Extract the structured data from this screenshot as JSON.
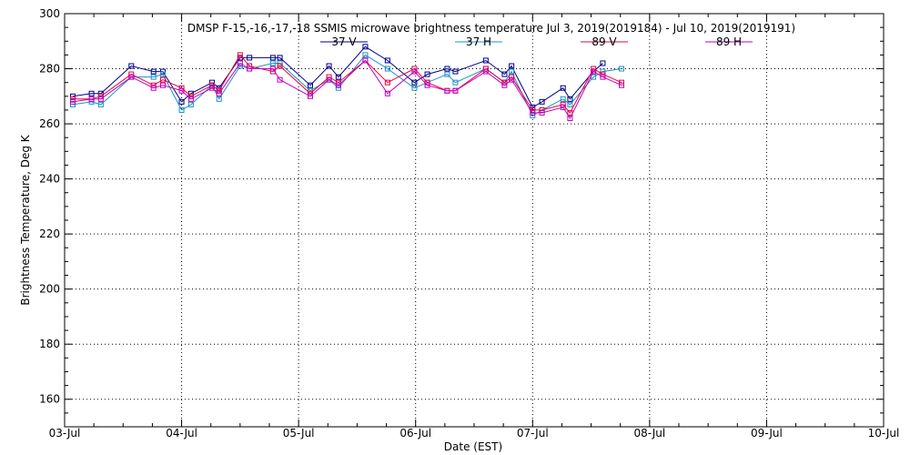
{
  "chart_data": {
    "type": "line",
    "title": "DMSP F-15,-16,-17,-18 SSMIS microwave brightness temperature Jul  3, 2019(2019184) - Jul 10, 2019(2019191)",
    "xlabel": "Date (EST)",
    "ylabel": "Brightness Temperature, Deg K",
    "xlim": [
      0,
      7
    ],
    "ylim": [
      150,
      300
    ],
    "grid": true,
    "legend_position": "top-center",
    "x_tick_values": [
      0,
      1,
      2,
      3,
      4,
      5,
      6,
      7
    ],
    "x_tick_labels": [
      "03-Jul",
      "04-Jul",
      "05-Jul",
      "06-Jul",
      "07-Jul",
      "08-Jul",
      "09-Jul",
      "10-Jul"
    ],
    "y_tick_values": [
      160,
      180,
      200,
      220,
      240,
      260,
      280,
      300
    ],
    "y_tick_labels": [
      "160",
      "180",
      "200",
      "220",
      "240",
      "260",
      "280",
      "300"
    ],
    "series": [
      {
        "name": "37 V",
        "color": "#00008b",
        "x": [
          0.07,
          0.23,
          0.31,
          0.57,
          0.76,
          0.84,
          1.0,
          1.08,
          1.26,
          1.32,
          1.5,
          1.58,
          1.78,
          1.84,
          2.1,
          2.26,
          2.34,
          2.57,
          2.76,
          2.99,
          3.1,
          3.27,
          3.34,
          3.6,
          3.76,
          3.82,
          4.0,
          4.08,
          4.26,
          4.32,
          4.52,
          4.6
        ],
        "y": [
          270,
          271,
          271,
          281,
          279,
          279,
          268,
          271,
          275,
          273,
          284,
          284,
          284,
          284,
          274,
          281,
          277,
          288,
          283,
          275,
          278,
          280,
          279,
          283,
          278,
          281,
          266,
          268,
          273,
          269,
          279,
          282
        ]
      },
      {
        "name": "37 H",
        "color": "#1e90c8",
        "x": [
          0.07,
          0.23,
          0.31,
          0.57,
          0.76,
          0.84,
          1.0,
          1.08,
          1.26,
          1.32,
          1.5,
          1.58,
          1.78,
          1.84,
          2.1,
          2.26,
          2.34,
          2.57,
          2.76,
          2.99,
          3.1,
          3.27,
          3.34,
          3.6,
          3.76,
          3.82,
          4.0,
          4.08,
          4.26,
          4.32,
          4.52,
          4.6,
          4.76
        ],
        "y": [
          267,
          268,
          267,
          277,
          277,
          278,
          265,
          267,
          274,
          269,
          281,
          280,
          282,
          282,
          272,
          276,
          273,
          285,
          280,
          273,
          275,
          278,
          275,
          280,
          275,
          279,
          263,
          265,
          269,
          267,
          277,
          279,
          280
        ]
      },
      {
        "name": "89 V",
        "color": "#e8003c",
        "x": [
          0.07,
          0.23,
          0.31,
          0.57,
          0.76,
          0.84,
          1.0,
          1.08,
          1.26,
          1.32,
          1.5,
          1.58,
          1.78,
          1.84,
          2.1,
          2.26,
          2.34,
          2.57,
          2.76,
          2.99,
          3.1,
          3.27,
          3.34,
          3.6,
          3.76,
          3.82,
          4.0,
          4.08,
          4.26,
          4.32,
          4.52,
          4.6,
          4.76
        ],
        "y": [
          269,
          269,
          270,
          278,
          274,
          276,
          273,
          270,
          274,
          272,
          285,
          281,
          279,
          281,
          271,
          277,
          275,
          283,
          275,
          280,
          275,
          272,
          272,
          280,
          275,
          277,
          265,
          265,
          267,
          264,
          280,
          278,
          275
        ]
      },
      {
        "name": "89 H",
        "color": "#c000c0",
        "x": [
          0.07,
          0.23,
          0.31,
          0.57,
          0.76,
          0.84,
          1.0,
          1.08,
          1.26,
          1.32,
          1.5,
          1.58,
          1.78,
          1.84,
          2.1,
          2.26,
          2.34,
          2.57,
          2.76,
          2.99,
          3.1,
          3.27,
          3.34,
          3.6,
          3.76,
          3.82,
          4.0,
          4.08,
          4.26,
          4.32,
          4.52,
          4.6,
          4.76
        ],
        "y": [
          268,
          269,
          269,
          277,
          273,
          274,
          272,
          269,
          273,
          271,
          282,
          280,
          280,
          276,
          270,
          276,
          274,
          283,
          271,
          279,
          274,
          272,
          272,
          279,
          274,
          276,
          264,
          264,
          266,
          262,
          279,
          277,
          274
        ]
      }
    ]
  }
}
